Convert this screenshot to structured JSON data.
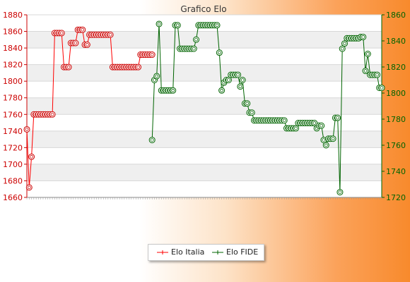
{
  "chart_data": {
    "type": "line",
    "title": "Grafico Elo",
    "left_axis": {
      "min": 1660,
      "max": 1880,
      "step": 20,
      "color": "#cc0000",
      "ticks": [
        "1660",
        "1680",
        "1700",
        "1720",
        "1740",
        "1760",
        "1780",
        "1800",
        "1820",
        "1840",
        "1860",
        "1880"
      ]
    },
    "right_axis": {
      "min": 1720,
      "max": 1860,
      "step": 20,
      "color": "#006400",
      "ticks": [
        "1720",
        "1740",
        "1760",
        "1780",
        "1800",
        "1820",
        "1840",
        "1860"
      ]
    },
    "grid": true,
    "legend_placement": "bottom",
    "series": [
      {
        "name": "Elo Italia",
        "axis": "left",
        "color": "#ff0000",
        "marker_stroke": "#cc0000",
        "points": [
          [
            0,
            1742
          ],
          [
            1,
            1672
          ],
          [
            2,
            1709
          ],
          [
            3,
            1760
          ],
          [
            4,
            1760
          ],
          [
            5,
            1760
          ],
          [
            6,
            1760
          ],
          [
            7,
            1760
          ],
          [
            8,
            1760
          ],
          [
            9,
            1760
          ],
          [
            10,
            1760
          ],
          [
            11,
            1760
          ],
          [
            12,
            1858
          ],
          [
            13,
            1858
          ],
          [
            14,
            1858
          ],
          [
            15,
            1858
          ],
          [
            16,
            1817
          ],
          [
            17,
            1817
          ],
          [
            18,
            1817
          ],
          [
            19,
            1846
          ],
          [
            20,
            1846
          ],
          [
            21,
            1846
          ],
          [
            22,
            1862
          ],
          [
            23,
            1862
          ],
          [
            24,
            1862
          ],
          [
            25,
            1844
          ],
          [
            26,
            1844
          ],
          [
            27,
            1856
          ],
          [
            28,
            1856
          ],
          [
            29,
            1856
          ],
          [
            30,
            1856
          ],
          [
            31,
            1856
          ],
          [
            32,
            1856
          ],
          [
            33,
            1856
          ],
          [
            34,
            1856
          ],
          [
            35,
            1856
          ],
          [
            36,
            1856
          ],
          [
            37,
            1817
          ],
          [
            38,
            1817
          ],
          [
            39,
            1817
          ],
          [
            40,
            1817
          ],
          [
            41,
            1817
          ],
          [
            42,
            1817
          ],
          [
            43,
            1817
          ],
          [
            44,
            1817
          ],
          [
            45,
            1817
          ],
          [
            46,
            1817
          ],
          [
            47,
            1817
          ],
          [
            48,
            1817
          ],
          [
            49,
            1832
          ],
          [
            50,
            1832
          ],
          [
            51,
            1832
          ],
          [
            52,
            1832
          ],
          [
            53,
            1832
          ],
          [
            54,
            1832
          ]
        ]
      },
      {
        "name": "Elo FIDE",
        "axis": "right",
        "color": "#006400",
        "marker_stroke": "#006400",
        "points": [
          [
            54,
            1764
          ],
          [
            55,
            1810
          ],
          [
            56,
            1813
          ],
          [
            57,
            1853
          ],
          [
            58,
            1802
          ],
          [
            59,
            1802
          ],
          [
            60,
            1802
          ],
          [
            61,
            1802
          ],
          [
            62,
            1802
          ],
          [
            63,
            1802
          ],
          [
            64,
            1852
          ],
          [
            65,
            1852
          ],
          [
            66,
            1834
          ],
          [
            67,
            1834
          ],
          [
            68,
            1834
          ],
          [
            69,
            1834
          ],
          [
            70,
            1834
          ],
          [
            71,
            1834
          ],
          [
            72,
            1834
          ],
          [
            73,
            1841
          ],
          [
            74,
            1852
          ],
          [
            75,
            1852
          ],
          [
            76,
            1852
          ],
          [
            77,
            1852
          ],
          [
            78,
            1852
          ],
          [
            79,
            1852
          ],
          [
            80,
            1852
          ],
          [
            81,
            1852
          ],
          [
            82,
            1852
          ],
          [
            83,
            1831
          ],
          [
            84,
            1802
          ],
          [
            85,
            1808
          ],
          [
            86,
            1810
          ],
          [
            87,
            1810
          ],
          [
            88,
            1814
          ],
          [
            89,
            1814
          ],
          [
            90,
            1814
          ],
          [
            91,
            1814
          ],
          [
            92,
            1805
          ],
          [
            93,
            1810
          ],
          [
            94,
            1792
          ],
          [
            95,
            1792
          ],
          [
            96,
            1785
          ],
          [
            97,
            1785
          ],
          [
            98,
            1779
          ],
          [
            99,
            1779
          ],
          [
            100,
            1779
          ],
          [
            101,
            1779
          ],
          [
            102,
            1779
          ],
          [
            103,
            1779
          ],
          [
            104,
            1779
          ],
          [
            105,
            1779
          ],
          [
            106,
            1779
          ],
          [
            107,
            1779
          ],
          [
            108,
            1779
          ],
          [
            109,
            1779
          ],
          [
            110,
            1779
          ],
          [
            111,
            1779
          ],
          [
            112,
            1773
          ],
          [
            113,
            1773
          ],
          [
            114,
            1773
          ],
          [
            115,
            1773
          ],
          [
            116,
            1773
          ],
          [
            117,
            1777
          ],
          [
            118,
            1777
          ],
          [
            119,
            1777
          ],
          [
            120,
            1777
          ],
          [
            121,
            1777
          ],
          [
            122,
            1777
          ],
          [
            123,
            1777
          ],
          [
            124,
            1777
          ],
          [
            125,
            1773
          ],
          [
            126,
            1775
          ],
          [
            127,
            1775
          ],
          [
            128,
            1764
          ],
          [
            129,
            1760
          ],
          [
            130,
            1765
          ],
          [
            131,
            1765
          ],
          [
            132,
            1765
          ],
          [
            133,
            1781
          ],
          [
            134,
            1781
          ],
          [
            135,
            1724
          ],
          [
            136,
            1834
          ],
          [
            137,
            1838
          ],
          [
            138,
            1842
          ],
          [
            139,
            1842
          ],
          [
            140,
            1842
          ],
          [
            141,
            1842
          ],
          [
            142,
            1842
          ],
          [
            143,
            1842
          ],
          [
            144,
            1843
          ],
          [
            145,
            1843
          ],
          [
            146,
            1817
          ],
          [
            147,
            1830
          ],
          [
            148,
            1814
          ],
          [
            149,
            1814
          ],
          [
            150,
            1814
          ],
          [
            151,
            1814
          ],
          [
            152,
            1804
          ],
          [
            153,
            1804
          ]
        ]
      }
    ]
  }
}
